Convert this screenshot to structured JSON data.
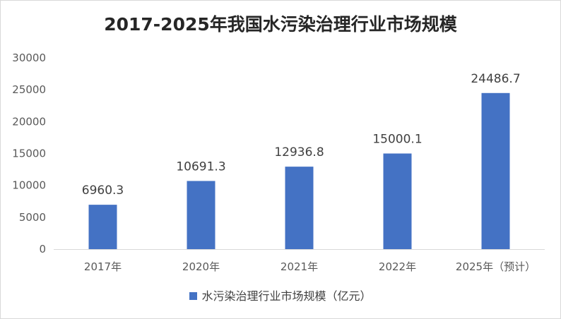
{
  "chart_data": {
    "type": "bar",
    "title": "2017-2025年我国水污染治理行业市场规模",
    "categories": [
      "2017年",
      "2020年",
      "2021年",
      "2022年",
      "2025年（预计）"
    ],
    "series": [
      {
        "name": "水污染治理行业市场规模（亿元）",
        "values": [
          6960.3,
          10691.3,
          12936.8,
          15000.1,
          24486.7
        ],
        "labels": [
          "6960.3",
          "10691.3",
          "12936.8",
          "15000.1",
          "24486.7"
        ],
        "color": "#4472c4"
      }
    ],
    "ylim": [
      0,
      30000
    ],
    "yticks": [
      "0",
      "5000",
      "10000",
      "15000",
      "20000",
      "25000",
      "30000"
    ],
    "yticks_values": [
      0,
      5000,
      10000,
      15000,
      20000,
      25000,
      30000
    ],
    "grid": false,
    "legend": "bottom"
  }
}
